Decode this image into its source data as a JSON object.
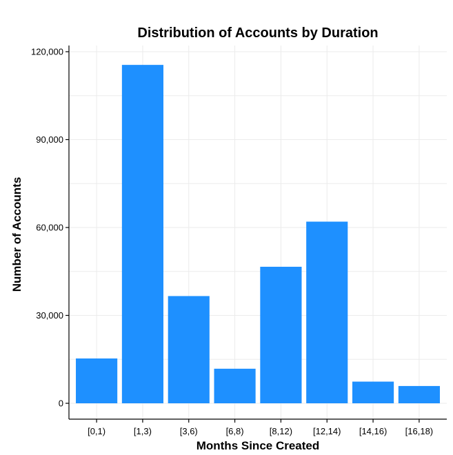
{
  "chart_data": {
    "type": "bar",
    "title": "Distribution of Accounts by Duration",
    "xlabel": "Months Since Created",
    "ylabel": "Number of Accounts",
    "categories": [
      "[0,1)",
      "[1,3)",
      "[3,6)",
      "[6,8)",
      "[8,12)",
      "[12,14)",
      "[14,16)",
      "[16,18)"
    ],
    "values": [
      15300,
      115500,
      36600,
      11800,
      46600,
      62000,
      7400,
      5900
    ],
    "ylim": [
      0,
      122000
    ],
    "yticks": [
      0,
      30000,
      60000,
      90000,
      120000
    ],
    "ytick_labels": [
      "0",
      "30,000",
      "60,000",
      "90,000",
      "120,000"
    ],
    "bar_color": "#1e90ff",
    "grid": true,
    "legend": "none"
  }
}
